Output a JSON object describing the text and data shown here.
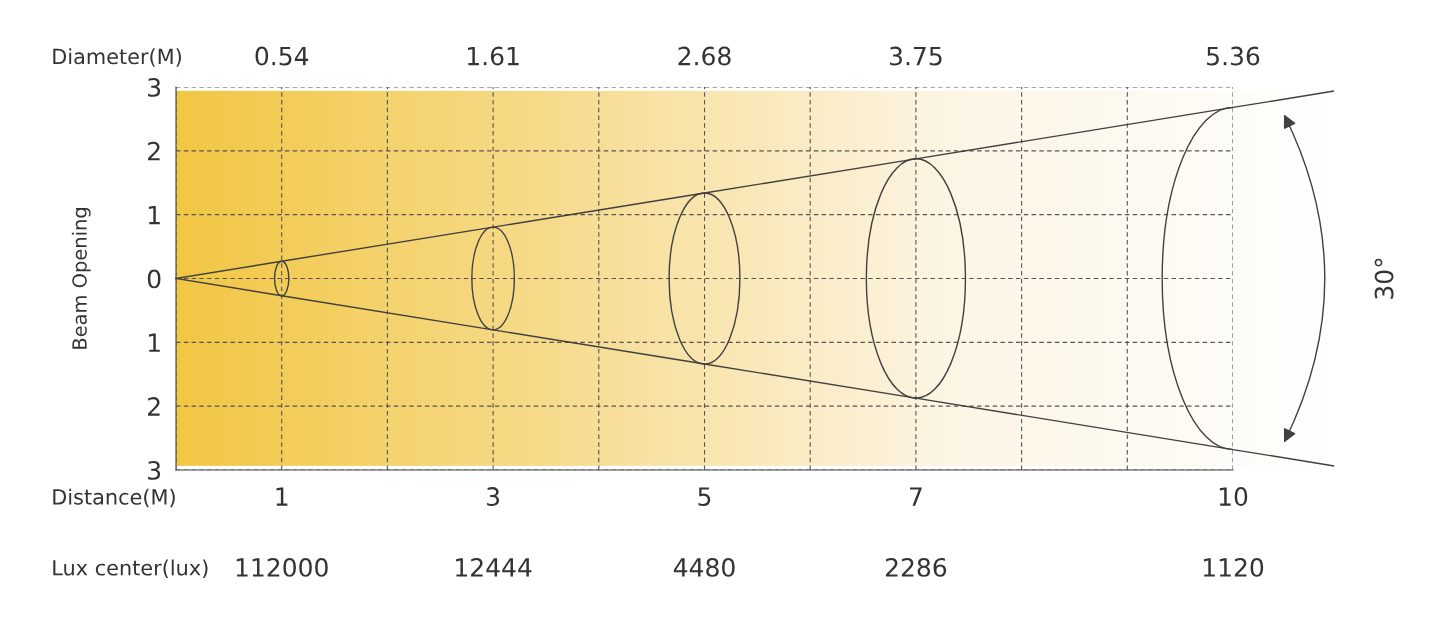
{
  "chart_data": {
    "type": "line",
    "ylabel": "Beam Opening",
    "xlabel": "Distance(M)",
    "x": [
      0,
      1,
      3,
      5,
      7,
      10
    ],
    "xlim": [
      0,
      10
    ],
    "xticks": [
      {
        "value": 0,
        "label": null
      },
      1,
      {
        "value": 2,
        "label": null
      },
      3,
      {
        "value": 4,
        "label": null
      },
      5,
      {
        "value": 6,
        "label": null
      },
      7,
      {
        "value": 8,
        "label": null
      },
      {
        "value": 9,
        "label": null
      },
      10
    ],
    "ylim": [
      -3,
      3
    ],
    "yticks": [
      {
        "value": -3,
        "label": "3"
      },
      {
        "value": -2,
        "label": "2"
      },
      {
        "value": -1,
        "label": "1"
      },
      0,
      1,
      2,
      3
    ],
    "series": [
      {
        "color": "#404040",
        "values": [
          0,
          0.27,
          0.805,
          1.34,
          1.875,
          2.68
        ]
      },
      {
        "color": "#404040",
        "values": [
          0,
          -0.27,
          -0.805,
          -1.34,
          -1.875,
          -2.68
        ]
      }
    ],
    "grid": true,
    "marker": "none",
    "annotations": [
      "Diameter(M)",
      "0.54",
      "1.61",
      "2.68",
      "3.75",
      "5.36",
      "Lux center(lux)",
      "112000",
      "12444",
      "4480",
      "2286",
      "1120",
      "30°"
    ]
  }
}
